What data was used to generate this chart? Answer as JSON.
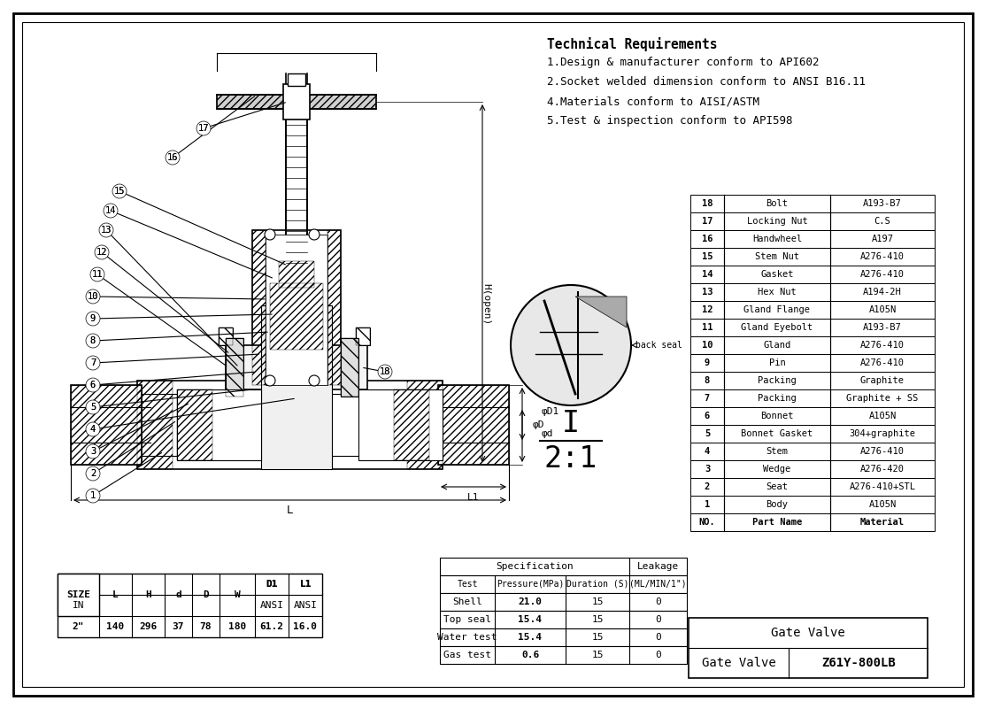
{
  "bg_color": "#ffffff",
  "tech_requirements": [
    "Technical Requirements",
    "1.Design & manufacturer conform to API602",
    "2.Socket welded dimension conform to ANSI B16.11",
    "4.Materials conform to AISI/ASTM",
    "5.Test & inspection conform to API598"
  ],
  "bom_rows": [
    [
      "18",
      "Bolt",
      "A193-B7"
    ],
    [
      "17",
      "Locking Nut",
      "C.S"
    ],
    [
      "16",
      "Handwheel",
      "A197"
    ],
    [
      "15",
      "Stem Nut",
      "A276-410"
    ],
    [
      "14",
      "Gasket",
      "A276-410"
    ],
    [
      "13",
      "Hex Nut",
      "A194-2H"
    ],
    [
      "12",
      "Gland Flange",
      "A105N"
    ],
    [
      "11",
      "Gland Eyebolt",
      "A193-B7"
    ],
    [
      "10",
      "Gland",
      "A276-410"
    ],
    [
      "9",
      "Pin",
      "A276-410"
    ],
    [
      "8",
      "Packing",
      "Graphite"
    ],
    [
      "7",
      "Packing",
      "Graphite + SS"
    ],
    [
      "6",
      "Bonnet",
      "A105N"
    ],
    [
      "5",
      "Bonnet Gasket",
      "304+graphite"
    ],
    [
      "4",
      "Stem",
      "A276-410"
    ],
    [
      "3",
      "Wedge",
      "A276-420"
    ],
    [
      "2",
      "Seat",
      "A276-410+STL"
    ],
    [
      "1",
      "Body",
      "A105N"
    ],
    [
      "NO.",
      "Part Name",
      "Material"
    ]
  ],
  "dim_table": {
    "row1": [
      "SIZE",
      "L",
      "H",
      "d",
      "D",
      "W",
      "D1",
      "L1"
    ],
    "row2": [
      "IN",
      "",
      "",
      "",
      "",
      "",
      "ANSI",
      "ANSI"
    ],
    "row3": [
      "2\"",
      "140",
      "296",
      "37",
      "78",
      "180",
      "61.2",
      "16.0"
    ]
  },
  "spec_rows": [
    [
      "Shell",
      "21.0",
      "15",
      "0"
    ],
    [
      "Top seal",
      "15.4",
      "15",
      "0"
    ],
    [
      "Water test",
      "15.4",
      "15",
      "0"
    ],
    [
      "Gas test",
      "0.6",
      "15",
      "0"
    ]
  ],
  "valve_name": "Gate Valve",
  "valve_model": "Z61Y-800LB",
  "back_seal_text": "back seal"
}
